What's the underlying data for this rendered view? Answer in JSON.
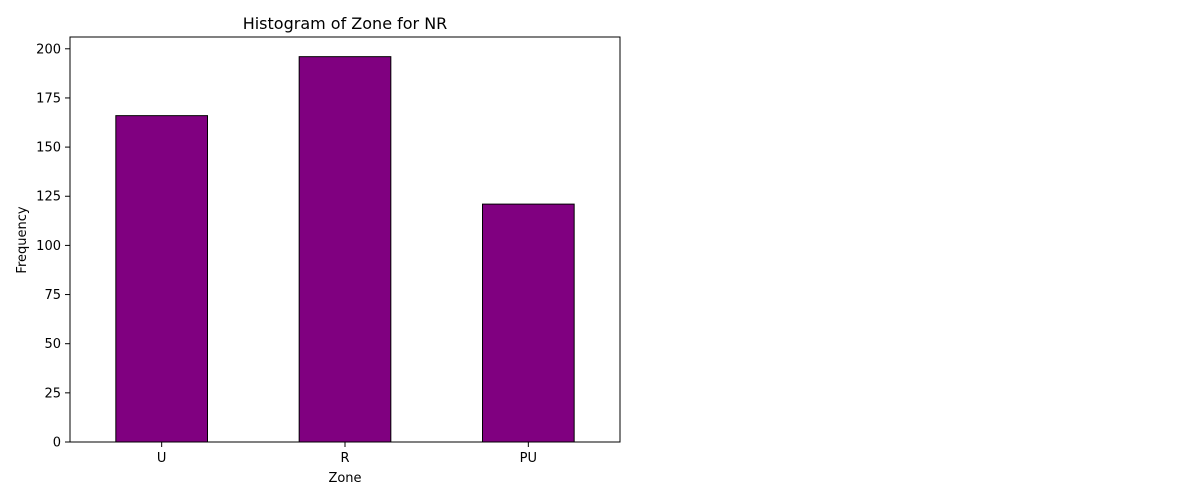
{
  "chart_data": {
    "type": "bar",
    "title": "Histogram of Zone for NR",
    "xlabel": "Zone",
    "ylabel": "Frequency",
    "categories": [
      "U",
      "R",
      "PU"
    ],
    "values": [
      166,
      196,
      121
    ],
    "ylim": [
      0,
      206
    ],
    "yticks": [
      0,
      25,
      50,
      75,
      100,
      125,
      150,
      175,
      200
    ],
    "bar_color": "#800080",
    "edge_color": "#000000",
    "grid": false,
    "legend": "none"
  }
}
